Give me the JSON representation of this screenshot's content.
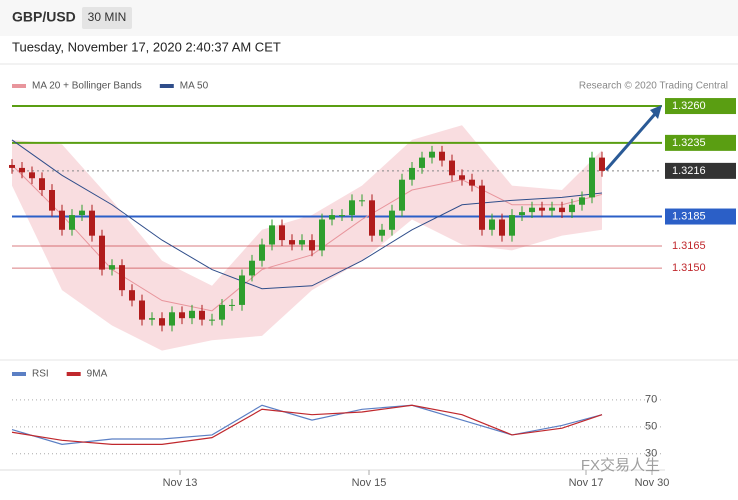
{
  "header": {
    "symbol": "GBP/USD",
    "timeframe": "30 MIN",
    "datetime": "Tuesday, November 17, 2020 2:40:37 AM CET"
  },
  "watermark": "FX交易人生",
  "chart_data": [
    {
      "type": "candlestick",
      "credit": "Research © 2020 Trading Central",
      "up_color": "#2e9e2e",
      "down_color": "#b01c1c",
      "xlim": [
        0,
        65
      ],
      "ylim": [
        1.3091,
        1.32675
      ],
      "open": [
        1.322,
        1.3218,
        1.3215,
        1.3211,
        1.3203,
        1.3189,
        1.3176,
        1.3186,
        1.3189,
        1.3172,
        1.3149,
        1.3152,
        1.3135,
        1.3128,
        1.3115,
        1.3116,
        1.3111,
        1.312,
        1.3116,
        1.3121,
        1.3115,
        1.3115,
        1.3125,
        1.3125,
        1.3145,
        1.3155,
        1.3166,
        1.3179,
        1.3169,
        1.3166,
        1.3169,
        1.3162,
        1.3183,
        1.3186,
        1.3186,
        1.3196,
        1.3196,
        1.3172,
        1.3176,
        1.3189,
        1.321,
        1.3218,
        1.3225,
        1.3229,
        1.3223,
        1.3213,
        1.321,
        1.3206,
        1.3176,
        1.3183,
        1.3172,
        1.3186,
        1.3188,
        1.3191,
        1.3189,
        1.3191,
        1.3188,
        1.3193,
        1.3198,
        1.3225
      ],
      "high": [
        1.3224,
        1.3222,
        1.3219,
        1.3215,
        1.3207,
        1.3193,
        1.319,
        1.3193,
        1.3193,
        1.3176,
        1.3156,
        1.3156,
        1.3139,
        1.3132,
        1.312,
        1.312,
        1.3124,
        1.3124,
        1.3125,
        1.3125,
        1.3119,
        1.3129,
        1.3129,
        1.3149,
        1.3159,
        1.317,
        1.3183,
        1.3183,
        1.3173,
        1.3173,
        1.3173,
        1.3187,
        1.319,
        1.319,
        1.32,
        1.32,
        1.32,
        1.318,
        1.3193,
        1.3214,
        1.3222,
        1.3229,
        1.3233,
        1.3233,
        1.3227,
        1.3217,
        1.3214,
        1.321,
        1.3187,
        1.3187,
        1.319,
        1.3192,
        1.3195,
        1.3195,
        1.3195,
        1.3195,
        1.3197,
        1.3202,
        1.3229,
        1.3229
      ],
      "low": [
        1.3214,
        1.3211,
        1.3207,
        1.3199,
        1.3185,
        1.3172,
        1.3172,
        1.3182,
        1.3168,
        1.3145,
        1.3145,
        1.3131,
        1.3124,
        1.3111,
        1.3111,
        1.3107,
        1.3107,
        1.3112,
        1.3112,
        1.3111,
        1.3111,
        1.3111,
        1.3121,
        1.3121,
        1.3141,
        1.3151,
        1.3162,
        1.3165,
        1.3162,
        1.3162,
        1.3158,
        1.3158,
        1.3179,
        1.3182,
        1.3182,
        1.3192,
        1.3168,
        1.3168,
        1.3172,
        1.3185,
        1.3206,
        1.3214,
        1.3221,
        1.3219,
        1.3209,
        1.3206,
        1.3202,
        1.3172,
        1.3172,
        1.3168,
        1.3168,
        1.3182,
        1.3184,
        1.3185,
        1.3185,
        1.3184,
        1.3184,
        1.3189,
        1.3194,
        1.3212
      ],
      "close": [
        1.3218,
        1.3215,
        1.3211,
        1.3203,
        1.3189,
        1.3176,
        1.3186,
        1.3189,
        1.3172,
        1.3149,
        1.3152,
        1.3135,
        1.3128,
        1.3115,
        1.3116,
        1.3111,
        1.312,
        1.3116,
        1.3121,
        1.3115,
        1.3115,
        1.3125,
        1.3125,
        1.3145,
        1.3155,
        1.3166,
        1.3179,
        1.3169,
        1.3166,
        1.3169,
        1.3162,
        1.3183,
        1.3186,
        1.3186,
        1.3196,
        1.3196,
        1.3172,
        1.3176,
        1.3189,
        1.321,
        1.3218,
        1.3225,
        1.3229,
        1.3223,
        1.3213,
        1.321,
        1.3206,
        1.3176,
        1.3183,
        1.3172,
        1.3186,
        1.3188,
        1.3191,
        1.3189,
        1.3191,
        1.3188,
        1.3193,
        1.3198,
        1.3225,
        1.3216
      ],
      "band": {
        "color": "#f7d4d8",
        "x": [
          0,
          5,
          10,
          15,
          20,
          25,
          30,
          35,
          40,
          45,
          50,
          55,
          59
        ],
        "upper": [
          1.3237,
          1.3234,
          1.3196,
          1.3155,
          1.3138,
          1.3176,
          1.3186,
          1.3206,
          1.3237,
          1.3247,
          1.3206,
          1.3203,
          1.323
        ],
        "lower": [
          1.3206,
          1.3135,
          1.3111,
          1.3094,
          1.3101,
          1.3104,
          1.3135,
          1.3155,
          1.3183,
          1.3166,
          1.3162,
          1.3172,
          1.3176
        ]
      },
      "series": [
        {
          "name": "MA 20 + Bollinger Bands",
          "color": "#e8959c",
          "x": [
            0,
            5,
            10,
            15,
            20,
            25,
            30,
            35,
            40,
            45,
            50,
            55,
            59
          ],
          "values": [
            1.322,
            1.3186,
            1.3149,
            1.3128,
            1.3121,
            1.3149,
            1.3159,
            1.3183,
            1.3203,
            1.321,
            1.3193,
            1.3193,
            1.32
          ]
        },
        {
          "name": "MA 50",
          "color": "#2f4d8a",
          "x": [
            0,
            5,
            10,
            15,
            20,
            25,
            30,
            35,
            40,
            45,
            50,
            55,
            59
          ],
          "values": [
            1.3237,
            1.3213,
            1.3193,
            1.3169,
            1.3149,
            1.3136,
            1.3138,
            1.3155,
            1.3176,
            1.3193,
            1.3196,
            1.3198,
            1.3201
          ]
        }
      ],
      "levels": [
        {
          "value": 1.326,
          "label": "1.3260",
          "color": "#5a9e12",
          "style": "solid"
        },
        {
          "value": 1.3235,
          "label": "1.3235",
          "color": "#5a9e12",
          "style": "solid"
        },
        {
          "value": 1.3216,
          "label": "1.3216",
          "color": "#333333",
          "style": "dotted"
        },
        {
          "value": 1.3185,
          "label": "1.3185",
          "color": "#2b5fc7",
          "style": "solid"
        },
        {
          "value": 1.3165,
          "label": "1.3165",
          "color": "#c0282d",
          "style": "thin"
        },
        {
          "value": 1.315,
          "label": "1.3150",
          "color": "#c0282d",
          "style": "thin"
        }
      ]
    },
    {
      "type": "line",
      "xlim": [
        0,
        65
      ],
      "ylim": [
        18,
        81
      ],
      "yticks": [
        70,
        50,
        30
      ],
      "xticks": [
        {
          "value": 16.8,
          "label": "Nov 13"
        },
        {
          "value": 35.7,
          "label": "Nov 15"
        },
        {
          "value": 57.4,
          "label": "Nov 17"
        },
        {
          "value": 64,
          "label": "Nov 30"
        }
      ],
      "series": [
        {
          "name": "RSI",
          "color": "#5b7fc4",
          "x": [
            0,
            5,
            10,
            15,
            20,
            25,
            30,
            35,
            40,
            45,
            50,
            55,
            59
          ],
          "values": [
            48,
            37,
            41,
            41,
            44,
            66,
            55,
            63,
            66,
            55,
            44,
            51,
            59
          ]
        },
        {
          "name": "9MA",
          "color": "#c0282d",
          "x": [
            0,
            5,
            10,
            15,
            20,
            25,
            30,
            35,
            40,
            45,
            50,
            55,
            59
          ],
          "values": [
            46,
            40,
            37,
            37,
            42,
            63,
            59,
            61,
            66,
            59,
            44,
            49,
            59
          ]
        }
      ]
    }
  ]
}
